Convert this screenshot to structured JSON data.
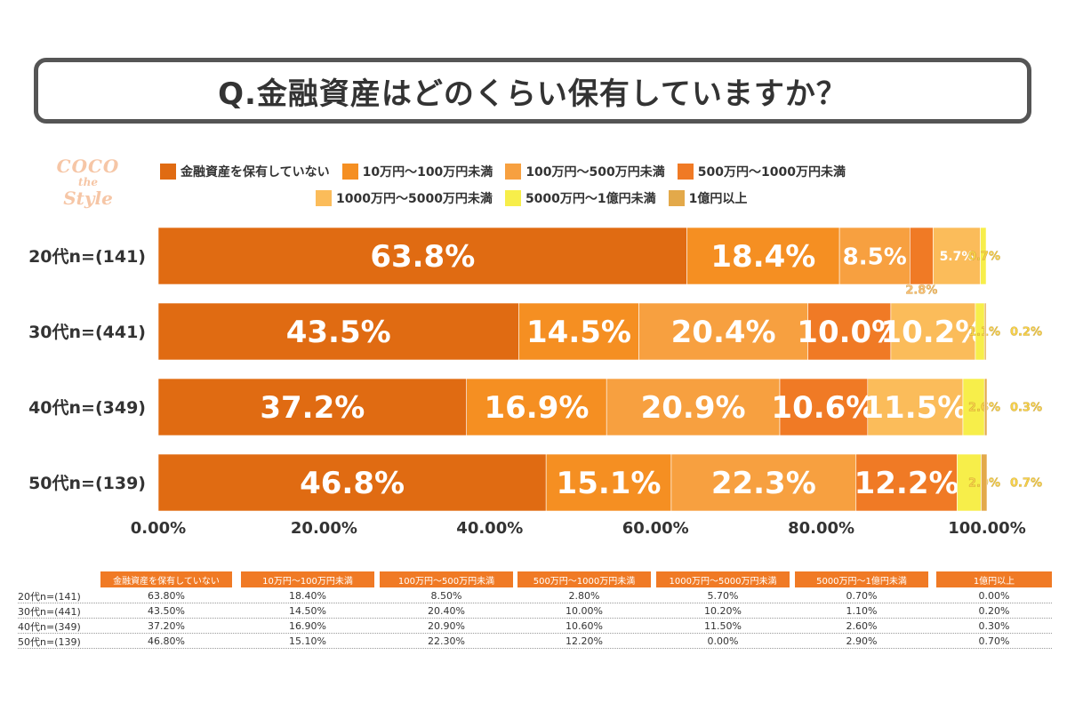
{
  "title": "Q.金融資産はどのくらい保有していますか？",
  "logo": {
    "line1": "COCO",
    "line2": "the",
    "line3": "Style"
  },
  "legend": [
    {
      "label": "金融資産を保有していない",
      "color": "#e06b12"
    },
    {
      "label": "10万円～100万円未満",
      "color": "#f58f22"
    },
    {
      "label": "100万円～500万円未満",
      "color": "#f7a040"
    },
    {
      "label": "500万円～1000万円未満",
      "color": "#f07a25"
    },
    {
      "label": "1000万円～5000万円未満",
      "color": "#fbbc5a"
    },
    {
      "label": "5000万円～1億円未満",
      "color": "#f7ee4a"
    },
    {
      "label": "1億円以上",
      "color": "#e3a94a"
    }
  ],
  "chart_data": {
    "type": "bar",
    "orientation": "horizontal-stacked",
    "categories": [
      "20代n=(141)",
      "30代n=(441)",
      "40代n=(349)",
      "50代n=(139)"
    ],
    "series": [
      {
        "name": "金融資産を保有していない",
        "values": [
          63.8,
          43.5,
          37.2,
          46.8
        ]
      },
      {
        "name": "10万円～100万円未満",
        "values": [
          18.4,
          14.5,
          16.9,
          15.1
        ]
      },
      {
        "name": "100万円～500万円未満",
        "values": [
          8.5,
          20.4,
          20.9,
          22.3
        ]
      },
      {
        "name": "500万円～1000万円未満",
        "values": [
          2.8,
          10.0,
          10.6,
          12.2
        ]
      },
      {
        "name": "1000万円～5000万円未満",
        "values": [
          5.7,
          10.2,
          11.5,
          0.0
        ]
      },
      {
        "name": "5000万円～1億円未満",
        "values": [
          0.7,
          1.1,
          2.6,
          2.9
        ]
      },
      {
        "name": "1億円以上",
        "values": [
          0.0,
          0.2,
          0.3,
          0.7
        ]
      }
    ],
    "data_labels": [
      [
        "63.8%",
        "18.4%",
        "8.5%",
        "2.8%",
        "5.7%",
        "0.7%",
        ""
      ],
      [
        "43.5%",
        "14.5%",
        "20.4%",
        "10.0%",
        "10.2%",
        "1.1%",
        "0.2%"
      ],
      [
        "37.2%",
        "16.9%",
        "20.9%",
        "10.6%",
        "11.5%",
        "2.6%",
        "0.3%"
      ],
      [
        "46.8%",
        "15.1%",
        "22.3%",
        "12.2%",
        "",
        "2.9%",
        "0.7%"
      ]
    ],
    "xlim": [
      0,
      100
    ],
    "xticks": [
      "0.00%",
      "20.00%",
      "40.00%",
      "60.00%",
      "80.00%",
      "100.00%"
    ],
    "title": "",
    "xlabel": "",
    "ylabel": ""
  },
  "table": {
    "headers": [
      "金融資産を保有していない",
      "10万円～100万円未満",
      "100万円～500万円未満",
      "500万円～1000万円未満",
      "1000万円～5000万円未満",
      "5000万円～1億円未満",
      "1億円以上"
    ],
    "rows": [
      {
        "label": "20代n=(141)",
        "values": [
          "63.80%",
          "18.40%",
          "8.50%",
          "2.80%",
          "5.70%",
          "0.70%",
          "0.00%"
        ]
      },
      {
        "label": "30代n=(441)",
        "values": [
          "43.50%",
          "14.50%",
          "20.40%",
          "10.00%",
          "10.20%",
          "1.10%",
          "0.20%"
        ]
      },
      {
        "label": "40代n=(349)",
        "values": [
          "37.20%",
          "16.90%",
          "20.90%",
          "10.60%",
          "11.50%",
          "2.60%",
          "0.30%"
        ]
      },
      {
        "label": "50代n=(139)",
        "values": [
          "46.80%",
          "15.10%",
          "22.30%",
          "12.20%",
          "0.00%",
          "2.90%",
          "0.70%"
        ]
      }
    ],
    "header_color": "#f07a25"
  }
}
